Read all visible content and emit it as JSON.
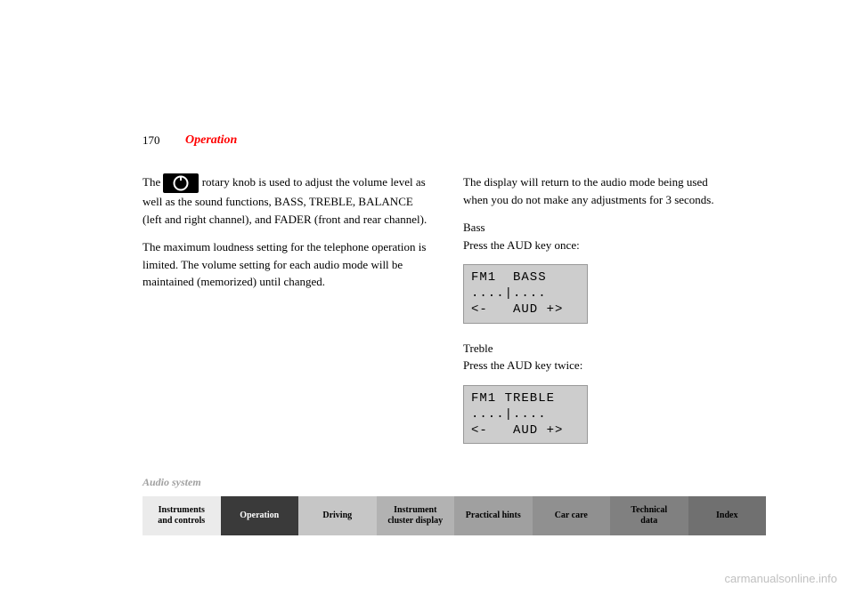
{
  "page_number": "170",
  "header": "Operation",
  "header_color": "#ff0000",
  "left_column": {
    "line1_pre": "The ",
    "line1_post": " rotary knob is used to adjust the volume",
    "line2": "level as well as the sound functions, BASS, TREBLE, BALANCE (left and right channel), and FADER (front and rear channel).",
    "line3": "The maximum loudness setting for the telephone operation is limited. The volume setting for each audio mode will be maintained (memorized) until changed."
  },
  "right_column": {
    "intro": "The display will return to the audio mode being used when you do not make any adjustments for 3 seconds.",
    "bass_title": "Bass",
    "bass_text": "Press the AUD key once:",
    "treble_title": "Treble",
    "treble_text": "Press the AUD key twice:"
  },
  "lcd_bass": {
    "line1": "FM1  BASS",
    "line2": "....|....",
    "line3": "<-   AUD +>"
  },
  "lcd_treble": {
    "line1": "FM1 TREBLE",
    "line2": "....|....",
    "line3": "<-   AUD +>"
  },
  "section_label": "Audio system",
  "tabs": [
    {
      "label": "Instruments\nand controls",
      "bg": "#ebebeb"
    },
    {
      "label": "Operation",
      "bg": "#3a3a3a",
      "fg": "#ffffff"
    },
    {
      "label": "Driving",
      "bg": "#c6c6c6"
    },
    {
      "label": "Instrument\ncluster display",
      "bg": "#b2b2b2"
    },
    {
      "label": "Practical hints",
      "bg": "#a0a0a0"
    },
    {
      "label": "Car care",
      "bg": "#909090"
    },
    {
      "label": "Technical\ndata",
      "bg": "#808080"
    },
    {
      "label": "Index",
      "bg": "#707070"
    }
  ],
  "watermark": "carmanualsonline.info"
}
